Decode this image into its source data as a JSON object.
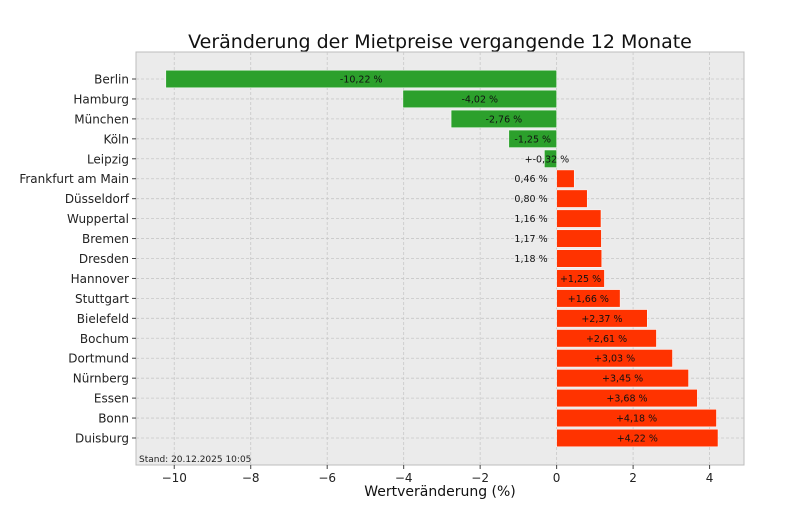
{
  "chart_data": {
    "type": "bar",
    "orientation": "horizontal",
    "title": "Veränderung der Mietpreise vergangende 12 Monate",
    "xlabel": "Wertveränderung (%)",
    "ylabel": "",
    "xlim": [
      -11,
      4.9
    ],
    "xticks": [
      -10,
      -8,
      -6,
      -4,
      -2,
      0,
      2,
      4
    ],
    "xtick_labels": [
      "−10",
      "−8",
      "−6",
      "−4",
      "−2",
      "0",
      "2",
      "4"
    ],
    "grid": true,
    "footnote": "Stand: 20.12.2025 10:05",
    "colors": {
      "negative": "#2ca02c",
      "positive": "#ff3300",
      "background": "#ebebeb",
      "grid": "#c8c8c8"
    },
    "categories": [
      "Berlin",
      "Hamburg",
      "München",
      "Köln",
      "Leipzig",
      "Frankfurt am Main",
      "Düsseldorf",
      "Wuppertal",
      "Bremen",
      "Dresden",
      "Hannover",
      "Stuttgart",
      "Bielefeld",
      "Bochum",
      "Dortmund",
      "Nürnberg",
      "Essen",
      "Bonn",
      "Duisburg"
    ],
    "values": [
      -10.22,
      -4.02,
      -2.76,
      -1.25,
      -0.32,
      0.46,
      0.8,
      1.16,
      1.17,
      1.18,
      1.25,
      1.66,
      2.37,
      2.61,
      3.03,
      3.45,
      3.68,
      4.18,
      4.22
    ],
    "value_labels": [
      "-10,22 %",
      "-4,02 %",
      "-2,76 %",
      "-1,25 %",
      "+-0,32 %",
      "0,46 %",
      "0,80 %",
      "1,16 %",
      "1,17 %",
      "1,18 %",
      "+1,25 %",
      "+1,66 %",
      "+2,37 %",
      "+2,61 %",
      "+3,03 %",
      "+3,45 %",
      "+3,68 %",
      "+4,18 %",
      "+4,22 %"
    ],
    "bar_colors": [
      "negative",
      "negative",
      "negative",
      "negative",
      "negative",
      "positive",
      "positive",
      "positive",
      "positive",
      "positive",
      "positive",
      "positive",
      "positive",
      "positive",
      "positive",
      "positive",
      "positive",
      "positive",
      "positive"
    ]
  }
}
